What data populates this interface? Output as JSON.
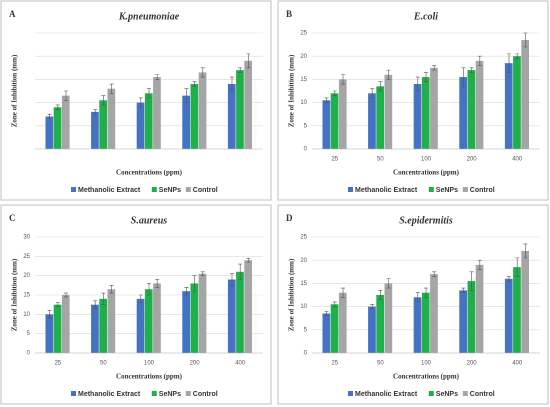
{
  "chart_data": [
    {
      "type": "bar",
      "label": "A",
      "title": "K.pneumoniae",
      "x_label": "Concentrations (ppm)",
      "y_label": "Zone of Inhibition (mm)",
      "categories": [
        null,
        null,
        null,
        null,
        null
      ],
      "show_tick_labels": false,
      "ylim": [
        0,
        25
      ],
      "yticks": [
        0,
        5,
        10,
        15,
        20,
        25
      ],
      "grid": true,
      "series": [
        {
          "name": "Methanolic Extract",
          "color": "#4472c4",
          "values": [
            7,
            8,
            10,
            11.5,
            14
          ],
          "errors": [
            0.5,
            0.5,
            1,
            1.5,
            1.5
          ]
        },
        {
          "name": "SeNPs",
          "color": "#1fb04b",
          "values": [
            9,
            10.5,
            12,
            14,
            17
          ],
          "errors": [
            0.5,
            1,
            1,
            0.5,
            0.5
          ]
        },
        {
          "name": "Control",
          "color": "#a5a5a5",
          "values": [
            11.5,
            13,
            15.5,
            16.5,
            19
          ],
          "errors": [
            1,
            1,
            0.5,
            1,
            1.5
          ]
        }
      ]
    },
    {
      "type": "bar",
      "label": "B",
      "title": "E.coli",
      "x_label": "Concentrations (ppm)",
      "y_label": "Zone of Inhibition (mm)",
      "categories": [
        "25",
        "50",
        "100",
        "200",
        "400"
      ],
      "show_tick_labels": true,
      "ylim": [
        0,
        25
      ],
      "yticks": [
        0,
        5,
        10,
        15,
        20,
        25
      ],
      "grid": true,
      "series": [
        {
          "name": "Methanolic Extract",
          "color": "#4472c4",
          "values": [
            10.5,
            12,
            14,
            15.5,
            18.5
          ],
          "errors": [
            0.5,
            1,
            1.5,
            2,
            2
          ]
        },
        {
          "name": "SeNPs",
          "color": "#1fb04b",
          "values": [
            12,
            13.5,
            15.5,
            17,
            20
          ],
          "errors": [
            0.5,
            1,
            1,
            0.5,
            0.5
          ]
        },
        {
          "name": "Control",
          "color": "#a5a5a5",
          "values": [
            15,
            16,
            17.5,
            19,
            23.5
          ],
          "errors": [
            1,
            1,
            0.5,
            1,
            1.5
          ]
        }
      ]
    },
    {
      "type": "bar",
      "label": "C",
      "title": "S.aureus",
      "x_label": "Concentrations (ppm)",
      "y_label": "Zone of Inhibition (mm)",
      "categories": [
        "25",
        "50",
        "100",
        "200",
        "400"
      ],
      "show_tick_labels": true,
      "ylim": [
        0,
        30
      ],
      "yticks": [
        0,
        5,
        10,
        15,
        20,
        25,
        30
      ],
      "grid": true,
      "series": [
        {
          "name": "Methanolic Extract",
          "color": "#4472c4",
          "values": [
            10,
            12.5,
            14,
            16,
            19
          ],
          "errors": [
            1,
            1,
            1,
            1,
            1.5
          ]
        },
        {
          "name": "SeNPs",
          "color": "#1fb04b",
          "values": [
            12.5,
            14,
            16.5,
            18,
            21
          ],
          "errors": [
            0.5,
            1.5,
            1.5,
            2,
            2
          ]
        },
        {
          "name": "Control",
          "color": "#a5a5a5",
          "values": [
            15,
            16.5,
            18,
            20.5,
            24
          ],
          "errors": [
            0.5,
            1,
            1,
            0.5,
            0.5
          ]
        }
      ]
    },
    {
      "type": "bar",
      "label": "D",
      "title": "S.epidermitis",
      "x_label": "Concentrations (ppm)",
      "y_label": "Zone of Inhibition (mm)",
      "categories": [
        "25",
        "50",
        "100",
        "200",
        "400"
      ],
      "show_tick_labels": true,
      "ylim": [
        0,
        25
      ],
      "yticks": [
        0,
        5,
        10,
        15,
        20,
        25
      ],
      "grid": true,
      "series": [
        {
          "name": "Methanolic Extract",
          "color": "#4472c4",
          "values": [
            8.5,
            10,
            12,
            13.5,
            16
          ],
          "errors": [
            0.5,
            0.5,
            1,
            0.5,
            0.5
          ]
        },
        {
          "name": "SeNPs",
          "color": "#1fb04b",
          "values": [
            10.5,
            12.5,
            13,
            15.5,
            18.5
          ],
          "errors": [
            0.5,
            1,
            1,
            2,
            2
          ]
        },
        {
          "name": "Control",
          "color": "#a5a5a5",
          "values": [
            13,
            15,
            17,
            19,
            22
          ],
          "errors": [
            1,
            1,
            0.5,
            1,
            1.5
          ]
        }
      ]
    }
  ]
}
